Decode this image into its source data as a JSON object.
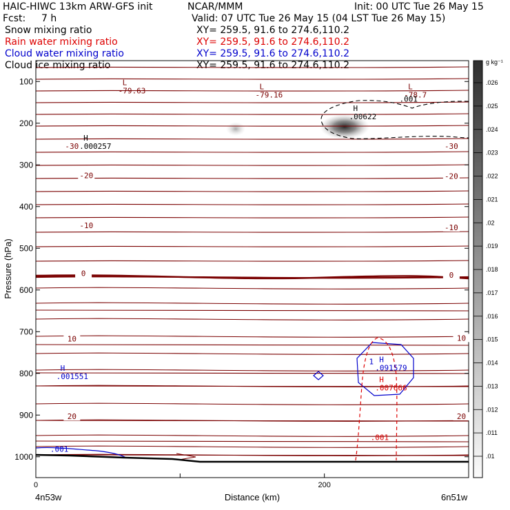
{
  "header": {
    "model": "HAIC-HIWC 13km ARW-GFS init",
    "org": "NCAR/MMM",
    "init": "Init: 00 UTC Tue 26 May 15",
    "fcst_label": "Fcst:",
    "fcst_value": "7 h",
    "valid": "Valid: 07 UTC Tue 26 May 15 (04 LST Tue 26 May 15)"
  },
  "fields": [
    {
      "name": "Snow mixing ratio",
      "xy": "XY= 259.5, 91.6 to 274.6,110.2",
      "color": "#000000"
    },
    {
      "name": "Rain water mixing ratio",
      "xy": "XY= 259.5, 91.6 to 274.6,110.2",
      "color": "#dd0000"
    },
    {
      "name": "Cloud water mixing ratio",
      "xy": "XY= 259.5, 91.6 to 274.6,110.2",
      "color": "#0000cc"
    },
    {
      "name": "Cloud ice mixing ratio",
      "xy": "XY= 259.5, 91.6 to 274.6,110.2",
      "color": "#000000"
    }
  ],
  "axes": {
    "ylabel": "Pressure (hPa)",
    "xlabel": "Distance (km)",
    "left_corner": "4n53w",
    "right_corner": "6n51w"
  },
  "colorbar": {
    "unit": "g kg⁻¹",
    "ticks": [
      ".01",
      ".011",
      ".012",
      ".013",
      ".014",
      ".015",
      ".016",
      ".017",
      ".018",
      ".019",
      ".02",
      ".021",
      ".022",
      ".023",
      ".024",
      ".025",
      ".026"
    ]
  },
  "colors": {
    "temperature": "#7a0000",
    "rain": "#dd0000",
    "cloud_water": "#0000cc",
    "snow": "#000000"
  },
  "chart_data": {
    "type": "cross-section",
    "x_range_km": [
      0,
      300
    ],
    "y_range_hPa": [
      1050,
      50
    ],
    "x_ticks": [
      0,
      200
    ],
    "y_ticks": [
      100,
      200,
      300,
      400,
      500,
      600,
      700,
      800,
      900,
      1000
    ],
    "temperature_labels": [
      {
        "text": "-30",
        "x": 25,
        "p": 260
      },
      {
        "text": "-30",
        "x": 288,
        "p": 260
      },
      {
        "text": "-20",
        "x": 35,
        "p": 330
      },
      {
        "text": "-20",
        "x": 288,
        "p": 332
      },
      {
        "text": "-10",
        "x": 35,
        "p": 450
      },
      {
        "text": "-10",
        "x": 288,
        "p": 455
      },
      {
        "text": "0",
        "x": 33,
        "p": 565
      },
      {
        "text": "0",
        "x": 288,
        "p": 569
      },
      {
        "text": "10",
        "x": 25,
        "p": 722
      },
      {
        "text": "10",
        "x": 295,
        "p": 720
      },
      {
        "text": "20",
        "x": 25,
        "p": 908
      },
      {
        "text": "20",
        "x": 295,
        "p": 908
      }
    ],
    "extrema": [
      {
        "type": "L",
        "value": "-79.63",
        "x": 60,
        "p": 115,
        "field": "temperature"
      },
      {
        "type": "L",
        "value": "-79.16",
        "x": 155,
        "p": 125,
        "field": "temperature"
      },
      {
        "type": "L",
        "value": "-78.7",
        "x": 258,
        "p": 125,
        "field": "temperature"
      },
      {
        "type": "H",
        "value": ".000257",
        "x": 33,
        "p": 248,
        "field": "snow"
      },
      {
        "type": "H",
        "value": ".00622",
        "x": 220,
        "p": 177,
        "field": "snow"
      },
      {
        "type": "H",
        "value": ".001551",
        "x": 17,
        "p": 800,
        "field": "cloud_water"
      },
      {
        "type": "H",
        "value": ".091579",
        "x": 238,
        "p": 780,
        "field": "cloud_water"
      },
      {
        "type": "H",
        "value": ".007666",
        "x": 238,
        "p": 828,
        "field": "rain"
      }
    ],
    "contour_labels": [
      {
        "text": ".001",
        "x": 252,
        "p": 148,
        "field": "snow"
      },
      {
        "text": ".001",
        "x": 10,
        "p": 988,
        "field": "cloud_water"
      },
      {
        "text": ".001",
        "x": 232,
        "p": 960,
        "field": "rain"
      },
      {
        "text": "1",
        "x": 231,
        "p": 778,
        "field": "cloud_water"
      }
    ]
  }
}
